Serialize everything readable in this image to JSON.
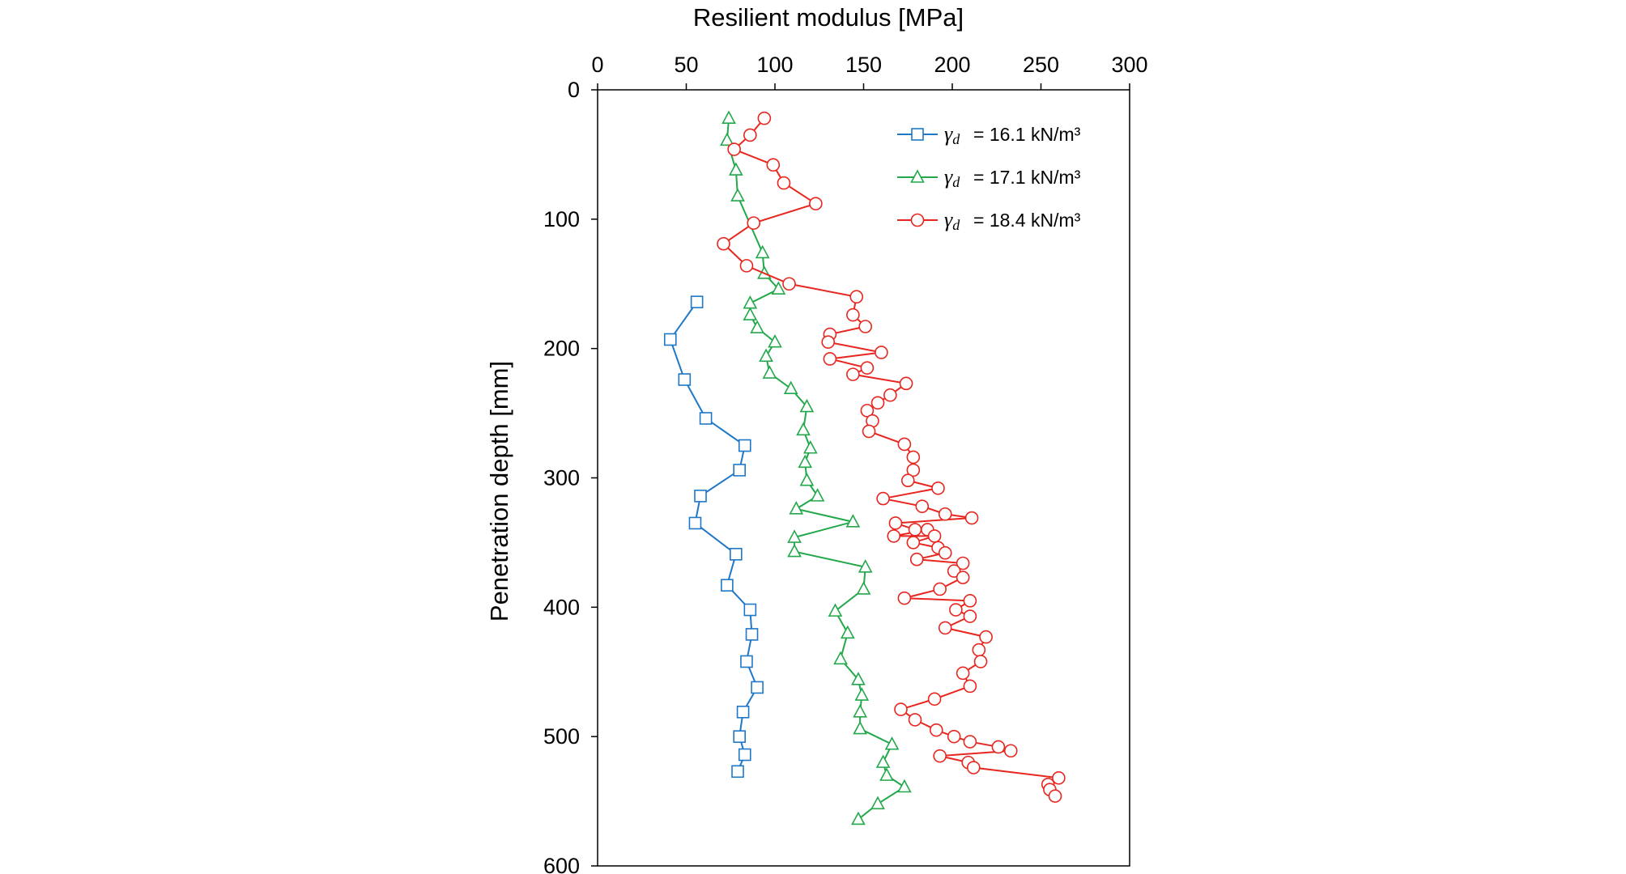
{
  "chart_data": {
    "type": "scatter",
    "xlabel": "Resilient modulus [MPa]",
    "ylabel": "Penetration depth [mm]",
    "xlim": [
      0,
      300
    ],
    "ylim": [
      600,
      0
    ],
    "x_axis_position": "top",
    "y_axis_inverted": true,
    "grid": false,
    "legend_position": "top-right",
    "x_ticks": [
      "0",
      "50",
      "100",
      "150",
      "200",
      "250",
      "300"
    ],
    "y_ticks": [
      "0",
      "100",
      "200",
      "300",
      "400",
      "500",
      "600"
    ],
    "series": [
      {
        "name": "16.1 kN/m³",
        "legend_prefix": "γd",
        "color": "#1f77c8",
        "marker": "square",
        "points": [
          [
            56,
            164
          ],
          [
            41,
            193
          ],
          [
            49,
            224
          ],
          [
            61,
            254
          ],
          [
            83,
            275
          ],
          [
            80,
            294
          ],
          [
            58,
            314
          ],
          [
            55,
            335
          ],
          [
            78,
            359
          ],
          [
            73,
            383
          ],
          [
            86,
            402
          ],
          [
            87,
            421
          ],
          [
            84,
            442
          ],
          [
            90,
            462
          ],
          [
            82,
            481
          ],
          [
            80,
            500
          ],
          [
            83,
            514
          ],
          [
            79,
            527
          ]
        ]
      },
      {
        "name": "17.1 kN/m³",
        "legend_prefix": "γd",
        "color": "#22a84a",
        "marker": "triangle",
        "points": [
          [
            74,
            22
          ],
          [
            73,
            39
          ],
          [
            78,
            62
          ],
          [
            79,
            82
          ],
          [
            93,
            126
          ],
          [
            94,
            142
          ],
          [
            102,
            154
          ],
          [
            86,
            165
          ],
          [
            86,
            174
          ],
          [
            90,
            184
          ],
          [
            100,
            195
          ],
          [
            95,
            206
          ],
          [
            97,
            219
          ],
          [
            109,
            231
          ],
          [
            118,
            245
          ],
          [
            116,
            263
          ],
          [
            120,
            277
          ],
          [
            117,
            288
          ],
          [
            118,
            302
          ],
          [
            124,
            314
          ],
          [
            112,
            324
          ],
          [
            144,
            334
          ],
          [
            111,
            346
          ],
          [
            111,
            357
          ],
          [
            151,
            369
          ],
          [
            150,
            386
          ],
          [
            134,
            403
          ],
          [
            141,
            420
          ],
          [
            137,
            440
          ],
          [
            147,
            456
          ],
          [
            149,
            468
          ],
          [
            148,
            481
          ],
          [
            148,
            494
          ],
          [
            166,
            506
          ],
          [
            161,
            520
          ],
          [
            163,
            530
          ],
          [
            173,
            539
          ],
          [
            158,
            552
          ],
          [
            147,
            564
          ]
        ]
      },
      {
        "name": "18.4 kN/m³",
        "legend_prefix": "γd",
        "color": "#e8251e",
        "marker": "circle",
        "points": [
          [
            94,
            22
          ],
          [
            86,
            35
          ],
          [
            77,
            46
          ],
          [
            99,
            58
          ],
          [
            105,
            72
          ],
          [
            123,
            88
          ],
          [
            88,
            103
          ],
          [
            71,
            119
          ],
          [
            84,
            136
          ],
          [
            108,
            150
          ],
          [
            146,
            160
          ],
          [
            144,
            174
          ],
          [
            151,
            183
          ],
          [
            131,
            189
          ],
          [
            130,
            195
          ],
          [
            160,
            203
          ],
          [
            131,
            208
          ],
          [
            152,
            215
          ],
          [
            144,
            220
          ],
          [
            174,
            227
          ],
          [
            165,
            236
          ],
          [
            158,
            242
          ],
          [
            152,
            248
          ],
          [
            155,
            256
          ],
          [
            153,
            264
          ],
          [
            173,
            274
          ],
          [
            178,
            284
          ],
          [
            178,
            294
          ],
          [
            175,
            302
          ],
          [
            192,
            308
          ],
          [
            161,
            316
          ],
          [
            183,
            322
          ],
          [
            196,
            328
          ],
          [
            211,
            331
          ],
          [
            168,
            335
          ],
          [
            179,
            340
          ],
          [
            186,
            340
          ],
          [
            167,
            345
          ],
          [
            190,
            345
          ],
          [
            178,
            350
          ],
          [
            192,
            354
          ],
          [
            196,
            358
          ],
          [
            180,
            363
          ],
          [
            206,
            366
          ],
          [
            201,
            372
          ],
          [
            206,
            377
          ],
          [
            193,
            386
          ],
          [
            173,
            393
          ],
          [
            210,
            395
          ],
          [
            202,
            402
          ],
          [
            210,
            407
          ],
          [
            196,
            416
          ],
          [
            219,
            423
          ],
          [
            215,
            433
          ],
          [
            216,
            442
          ],
          [
            206,
            451
          ],
          [
            210,
            461
          ],
          [
            190,
            471
          ],
          [
            171,
            479
          ],
          [
            179,
            487
          ],
          [
            191,
            495
          ],
          [
            201,
            500
          ],
          [
            210,
            504
          ],
          [
            226,
            508
          ],
          [
            233,
            511
          ],
          [
            193,
            515
          ],
          [
            209,
            520
          ],
          [
            212,
            524
          ],
          [
            260,
            532
          ],
          [
            254,
            537
          ],
          [
            255,
            541
          ],
          [
            258,
            546
          ]
        ]
      }
    ]
  }
}
